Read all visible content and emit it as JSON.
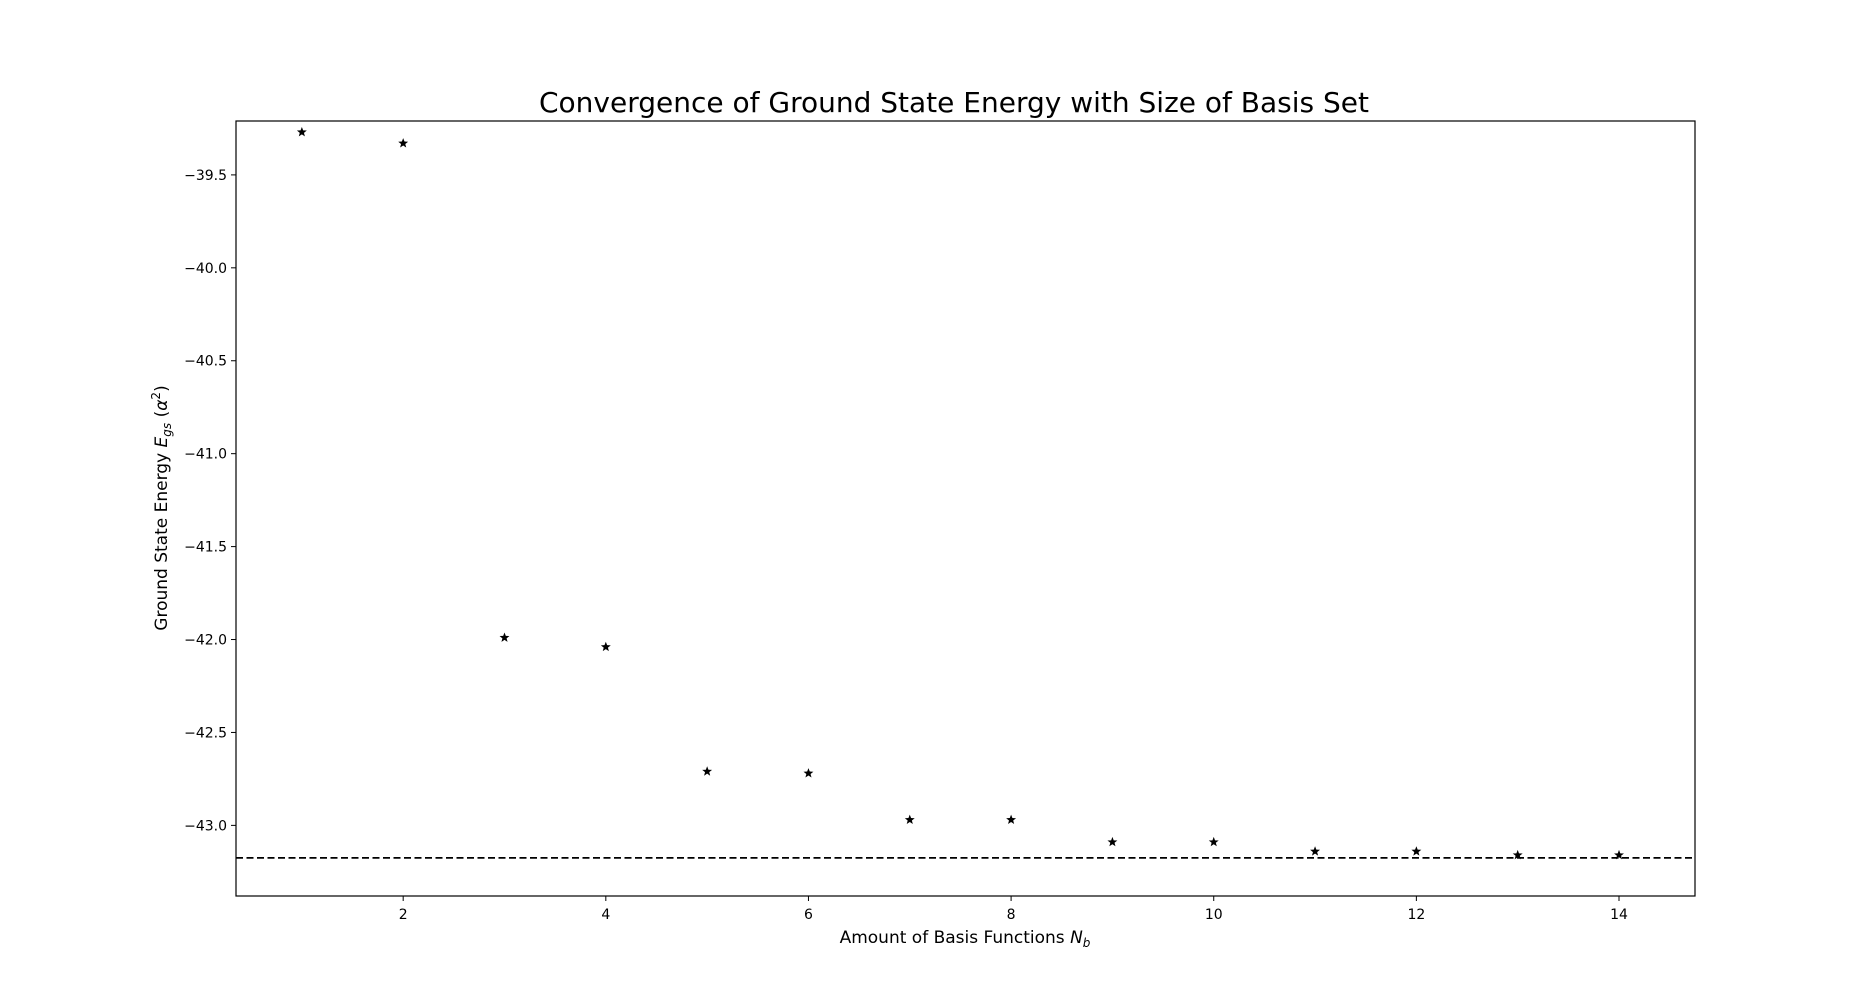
{
  "chart_data": {
    "type": "scatter",
    "title": "Convergence of Ground State Energy with Size of Basis Set",
    "xlabel": {
      "text": "Amount of Basis Functions ",
      "symbol": "N",
      "subscript": "b"
    },
    "ylabel": {
      "text": "Ground State Energy ",
      "symbol": "E",
      "subscript": "gs",
      "unit_open": " (",
      "unit_symbol": "α",
      "unit_sup": "2",
      "unit_close": ")"
    },
    "xlim": [
      0.35,
      14.75
    ],
    "ylim": [
      -43.38,
      -39.21
    ],
    "xticks": [
      2,
      4,
      6,
      8,
      10,
      12,
      14
    ],
    "xtick_labels": [
      "2",
      "4",
      "6",
      "8",
      "10",
      "12",
      "14"
    ],
    "yticks": [
      -39.5,
      -40.0,
      -40.5,
      -41.0,
      -41.5,
      -42.0,
      -42.5,
      -43.0
    ],
    "ytick_labels": [
      "−39.5",
      "−40.0",
      "−40.5",
      "−41.0",
      "−41.5",
      "−42.0",
      "−42.5",
      "−43.0"
    ],
    "grid": false,
    "marker": "star",
    "marker_color": "#000000",
    "x": [
      1,
      2,
      3,
      4,
      5,
      6,
      7,
      8,
      9,
      10,
      11,
      12,
      13,
      14
    ],
    "y": [
      -39.27,
      -39.33,
      -41.99,
      -42.04,
      -42.71,
      -42.72,
      -42.97,
      -42.97,
      -43.09,
      -43.09,
      -43.14,
      -43.14,
      -43.16,
      -43.16
    ],
    "reference_line": {
      "y": -43.175,
      "style": "dashed",
      "color": "#000000"
    }
  }
}
